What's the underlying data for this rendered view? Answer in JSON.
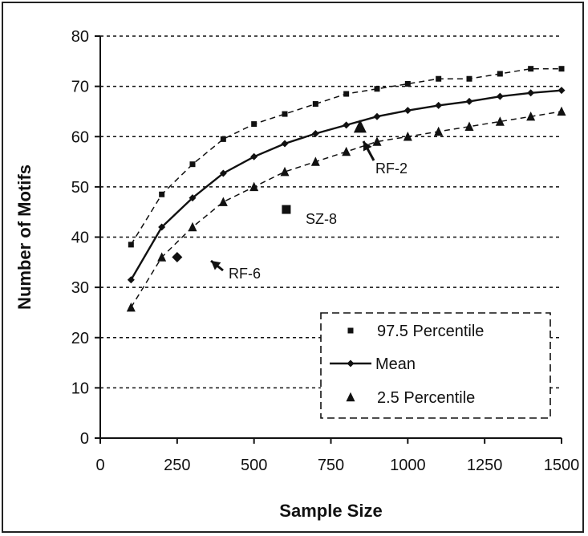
{
  "chart_data": {
    "type": "line",
    "title": "",
    "xlabel": "Sample Size",
    "ylabel": "Number of Motifs",
    "xlim": [
      0,
      1500
    ],
    "ylim": [
      0,
      80
    ],
    "xticks": [
      0,
      250,
      500,
      750,
      1000,
      1250,
      1500
    ],
    "yticks": [
      0,
      10,
      20,
      30,
      40,
      50,
      60,
      70,
      80
    ],
    "grid": "horizontal dotted",
    "legend_position": "bottom-right",
    "series": [
      {
        "name": "97.5 Percentile",
        "marker": "square",
        "line": "dashed",
        "x": [
          100,
          200,
          300,
          400,
          500,
          600,
          700,
          800,
          900,
          1000,
          1100,
          1200,
          1300,
          1400,
          1500
        ],
        "values": [
          38.5,
          48.5,
          54.5,
          59.5,
          62.5,
          64.5,
          66.5,
          68.5,
          69.5,
          70.5,
          71.5,
          71.5,
          72.5,
          73.5,
          73.5
        ]
      },
      {
        "name": "Mean",
        "marker": "diamond",
        "line": "solid",
        "x": [
          100,
          200,
          300,
          400,
          500,
          600,
          700,
          800,
          900,
          1000,
          1100,
          1200,
          1300,
          1400,
          1500
        ],
        "values": [
          31.5,
          42,
          47.8,
          52.7,
          56,
          58.6,
          60.6,
          62.3,
          64,
          65.2,
          66.2,
          67,
          68,
          68.7,
          69.2
        ]
      },
      {
        "name": "2.5 Percentile",
        "marker": "triangle",
        "line": "dashed",
        "x": [
          100,
          200,
          300,
          400,
          500,
          600,
          700,
          800,
          900,
          1000,
          1100,
          1200,
          1300,
          1400,
          1500
        ],
        "values": [
          26,
          36,
          42,
          47,
          50,
          53,
          55,
          57,
          59,
          60,
          61,
          62,
          63,
          64,
          65
        ]
      }
    ],
    "annotations": [
      {
        "label": "RF-6",
        "marker": "diamond",
        "x": 250,
        "y": 36
      },
      {
        "label": "SZ-8",
        "marker": "square",
        "x": 605,
        "y": 45.5
      },
      {
        "label": "RF-2",
        "marker": "triangle",
        "x": 845,
        "y": 62
      }
    ]
  }
}
